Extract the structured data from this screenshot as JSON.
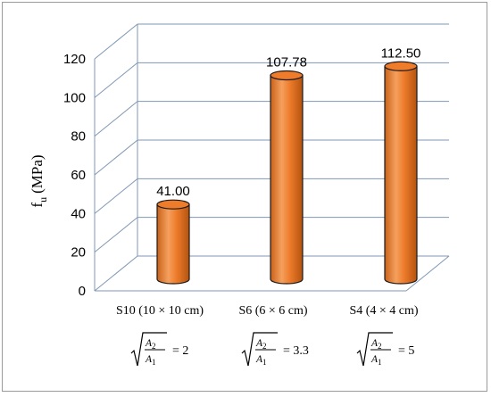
{
  "chart_data": {
    "type": "bar",
    "style": "3d-cylinder",
    "categories": [
      "S10 (10 × 10 cm)",
      "S6 (6 × 6 cm)",
      "S4 (4 × 4 cm)"
    ],
    "values": [
      41.0,
      107.78,
      112.5
    ],
    "data_labels": [
      "41.00",
      "107.78",
      "112.50"
    ],
    "ylabel_main": "f",
    "ylabel_sub": "u",
    "ylabel_unit": "(MPa)",
    "yticks": [
      "0",
      "20",
      "40",
      "60",
      "80",
      "100",
      "120"
    ],
    "ylim": [
      0,
      120
    ],
    "grid": true,
    "legend": "none",
    "ratio_labels": {
      "numerator_sym": "A",
      "numerator_sub": "2",
      "denominator_sym": "A",
      "denominator_sub": "1",
      "values": [
        "= 2",
        "= 3.3",
        "= 5"
      ]
    }
  },
  "colors": {
    "bar_fill": "#ee7c2b",
    "bar_dark": "#b4530f",
    "bar_top": "#f6a25f",
    "bar_outline": "#1a1a1a",
    "grid": "#7f97b4"
  }
}
